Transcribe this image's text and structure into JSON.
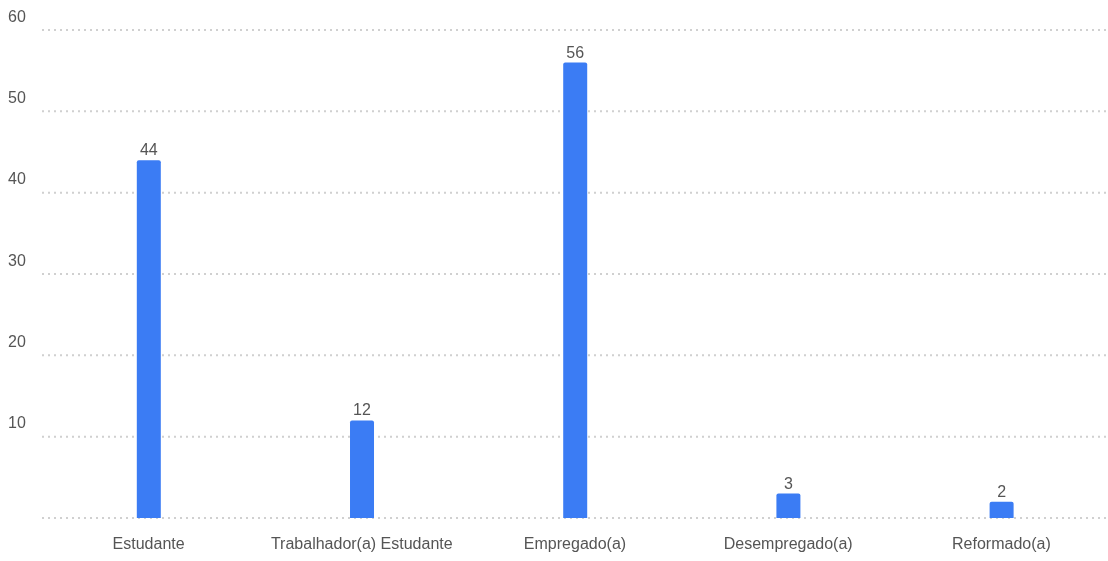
{
  "chart_data": {
    "type": "bar",
    "categories": [
      "Estudante",
      "Trabalhador(a) Estudante",
      "Empregado(a)",
      "Desempregado(a)",
      "Reformado(a)"
    ],
    "values": [
      44,
      12,
      56,
      3,
      2
    ],
    "color": "#3b7cf4",
    "ylim": [
      0,
      60
    ],
    "yticks": [
      {
        "value": 0,
        "label": null
      },
      10,
      20,
      30,
      40,
      50,
      60
    ],
    "grid": "y",
    "data_labels": true
  }
}
